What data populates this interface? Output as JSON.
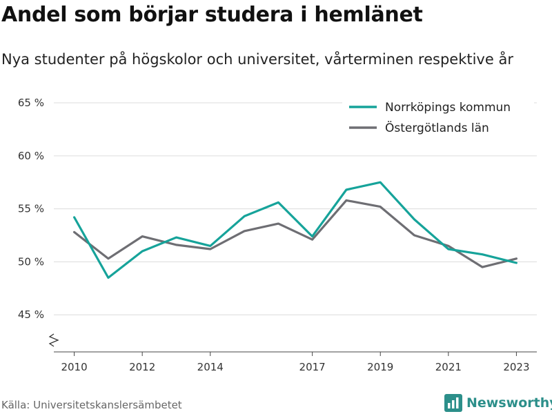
{
  "title": "Andel som börjar studera i hemlänet",
  "subtitle": "Nya studenter på högskolor och universitet, vårterminen respektive år",
  "source": "Källa: Universitetskanslersämbetet",
  "brand": {
    "name": "Newsworthy",
    "icon": "newsworthy-logo-icon",
    "color": "#2c8f8a"
  },
  "chart_data": {
    "type": "line",
    "title": "Andel som börjar studera i hemlänet",
    "subtitle": "Nya studenter på högskolor och universitet, vårterminen respektive år",
    "xlabel": "",
    "ylabel": "",
    "x": [
      2010,
      2011,
      2012,
      2013,
      2014,
      2015,
      2016,
      2017,
      2018,
      2019,
      2020,
      2021,
      2022,
      2023
    ],
    "xticks": [
      2010,
      2012,
      2014,
      2017,
      2019,
      2021,
      2023
    ],
    "xtick_labels": [
      "2010",
      "2012",
      "2014",
      "2017",
      "2019",
      "2021",
      "2023"
    ],
    "xlim": [
      2009.4,
      2023.6
    ],
    "yticks": [
      45,
      50,
      55,
      60,
      65
    ],
    "ytick_labels": [
      "45 %",
      "50 %",
      "55 %",
      "60 %",
      "65 %"
    ],
    "ylim": [
      41.5,
      66.5
    ],
    "axis_break": true,
    "grid": true,
    "legend_position": "top-right",
    "series": [
      {
        "name": "Norrköpings kommun",
        "color": "#16a39a",
        "values": [
          54.2,
          48.5,
          51.0,
          52.3,
          51.5,
          54.3,
          55.6,
          52.4,
          56.8,
          57.5,
          54.0,
          51.2,
          50.7,
          49.9
        ]
      },
      {
        "name": "Östergötlands län",
        "color": "#6e6e73",
        "values": [
          52.8,
          50.3,
          52.4,
          51.6,
          51.2,
          52.9,
          53.6,
          52.1,
          55.8,
          55.2,
          52.5,
          51.5,
          49.5,
          50.3
        ]
      }
    ]
  }
}
